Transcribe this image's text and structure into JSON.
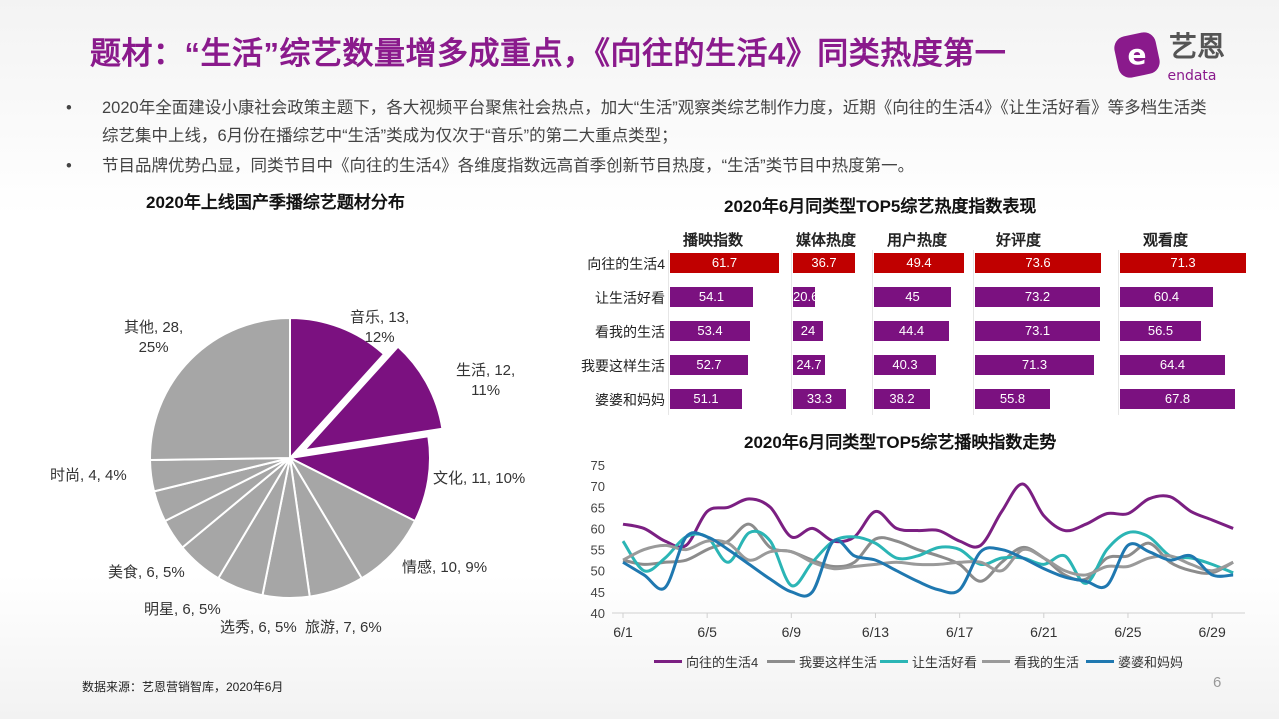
{
  "header": {
    "title": "题材：“生活”综艺数量增多成重点，《向往的生活4》同类热度第一",
    "logo": {
      "text_cn": "艺恩",
      "text_en": "endata",
      "color": "#8a1a8c"
    }
  },
  "bullets": [
    {
      "marker": "•",
      "text": "2020年全面建设小康社会政策主题下，各大视频平台聚焦社会热点，加大“生活”观察类综艺制作力度，近期《向往的生活4》《让生活好看》等多档生活类综艺集中上线，6月份在播综艺中“生活”类成为仅次于“音乐”的第二大重点类型；"
    },
    {
      "marker": "•",
      "text": "节目品牌优势凸显，同类节目中《向往的生活4》各维度指数远高首季创新节目热度，“生活”类节目中热度第一。"
    }
  ],
  "footer": {
    "source": "数据来源：艺恩营销智库，2020年6月",
    "page": "6"
  },
  "chart_data": [
    {
      "type": "pie",
      "title": "2020年上线国产季播综艺题材分布",
      "highlight_color": "#7b1180",
      "other_color": "#a6a6a6",
      "exploded": "生活",
      "slices": [
        {
          "name": "音乐",
          "value": 13,
          "pct": "12%",
          "label": "音乐, 13,",
          "label2": "12%",
          "highlight": true
        },
        {
          "name": "生活",
          "value": 12,
          "pct": "11%",
          "label": "生活, 12,",
          "label2": "11%",
          "highlight": true
        },
        {
          "name": "文化",
          "value": 11,
          "pct": "10%",
          "label": "文化, 11, 10%",
          "highlight": true
        },
        {
          "name": "情感",
          "value": 10,
          "pct": "9%",
          "label": "情感, 10, 9%"
        },
        {
          "name": "旅游",
          "value": 7,
          "pct": "6%",
          "label": "旅游, 7, 6%"
        },
        {
          "name": "选秀",
          "value": 6,
          "pct": "5%",
          "label": "选秀, 6, 5%"
        },
        {
          "name": "明星",
          "value": 6,
          "pct": "5%",
          "label": "明星, 6, 5%"
        },
        {
          "name": "美食",
          "value": 6,
          "pct": "5%",
          "label": "美食, 6, 5%"
        },
        {
          "name": "",
          "value": 4
        },
        {
          "name": "",
          "value": 4
        },
        {
          "name": "时尚",
          "value": 4,
          "pct": "4%",
          "label": "时尚, 4, 4%"
        },
        {
          "name": "其他",
          "value": 28,
          "pct": "25%",
          "label": "其他, 28,",
          "label2": "25%"
        }
      ]
    },
    {
      "type": "table",
      "title": "2020年6月同类型TOP5综艺热度指数表现",
      "highlight_color": "#c00000",
      "bar_color": "#7b1180",
      "columns": [
        "播映指数",
        "媒体热度",
        "用户热度",
        "好评度",
        "观看度"
      ],
      "rows": [
        {
          "name": "向往的生活4",
          "values": [
            61.7,
            36.7,
            49.4,
            73.6,
            71.3
          ],
          "highlight": true
        },
        {
          "name": "让生活好看",
          "values": [
            54.1,
            20.6,
            45,
            73.2,
            60.4
          ]
        },
        {
          "name": "看我的生活",
          "values": [
            53.4,
            24,
            44.4,
            73.1,
            56.5
          ]
        },
        {
          "name": "我要这样生活",
          "values": [
            52.7,
            24.7,
            40.3,
            71.3,
            64.4
          ]
        },
        {
          "name": "婆婆和妈妈",
          "values": [
            51.1,
            33.3,
            38.2,
            55.8,
            67.8
          ]
        }
      ]
    },
    {
      "type": "line",
      "title": "2020年6月同类型TOP5综艺播映指数走势",
      "ylim": [
        40,
        75
      ],
      "yticks": [
        40,
        45,
        50,
        55,
        60,
        65,
        70,
        75
      ],
      "xticks": [
        "6/1",
        "6/5",
        "6/9",
        "6/13",
        "6/17",
        "6/21",
        "6/25",
        "6/29"
      ],
      "x": [
        "6/1",
        "6/2",
        "6/3",
        "6/4",
        "6/5",
        "6/6",
        "6/7",
        "6/8",
        "6/9",
        "6/10",
        "6/11",
        "6/12",
        "6/13",
        "6/14",
        "6/15",
        "6/16",
        "6/17",
        "6/18",
        "6/19",
        "6/20",
        "6/21",
        "6/22",
        "6/23",
        "6/24",
        "6/25",
        "6/26",
        "6/27",
        "6/28",
        "6/29",
        "6/30"
      ],
      "legend": "bottom",
      "series": [
        {
          "name": "向往的生活4",
          "color": "#7b1f82",
          "values": [
            61,
            60,
            57,
            56,
            64,
            65,
            67,
            65,
            58,
            60,
            57,
            58,
            64,
            60,
            59.5,
            59.5,
            57,
            56,
            64,
            70.5,
            63,
            59.5,
            61,
            63.5,
            63.5,
            67,
            67.5,
            64,
            62,
            60
          ]
        },
        {
          "name": "我要这样生活",
          "color": "#8c8c8c",
          "values": [
            52.5,
            51.5,
            52,
            52.5,
            55,
            57,
            61,
            55.5,
            54.5,
            52.5,
            51,
            52,
            57.5,
            57,
            55,
            53.5,
            51.5,
            47.5,
            52,
            55.5,
            53,
            49,
            48,
            53,
            53.5,
            56.5,
            52,
            50,
            49.5,
            52
          ]
        },
        {
          "name": "让生活好看",
          "color": "#2bb5b5",
          "values": [
            57,
            50,
            53,
            58,
            58,
            52,
            59,
            57,
            46.5,
            52,
            57,
            58,
            56.5,
            53,
            53.5,
            55.5,
            55,
            51.5,
            53,
            53,
            51.5,
            53.5,
            47,
            55,
            59,
            58,
            53.5,
            53,
            51.5,
            49.5
          ]
        },
        {
          "name": "看我的生活",
          "color": "#9a9a9a",
          "values": [
            52.5,
            55,
            56,
            55,
            57,
            56.5,
            52.5,
            54.5,
            54.5,
            52,
            50.5,
            51,
            51.5,
            52,
            51.5,
            51.5,
            52,
            52,
            50,
            55,
            53,
            50,
            49,
            51,
            51,
            53,
            53.5,
            51.5,
            50,
            52
          ]
        },
        {
          "name": "婆婆和妈妈",
          "color": "#1f78b0",
          "values": [
            52,
            49,
            46,
            58,
            58,
            55,
            51.5,
            48,
            45,
            45,
            57,
            53.5,
            52.5,
            50,
            47.5,
            45.5,
            45.5,
            54.5,
            55,
            53,
            50.5,
            48.5,
            47.5,
            46.5,
            56,
            54.5,
            52.5,
            53.5,
            49,
            49
          ]
        }
      ]
    }
  ]
}
